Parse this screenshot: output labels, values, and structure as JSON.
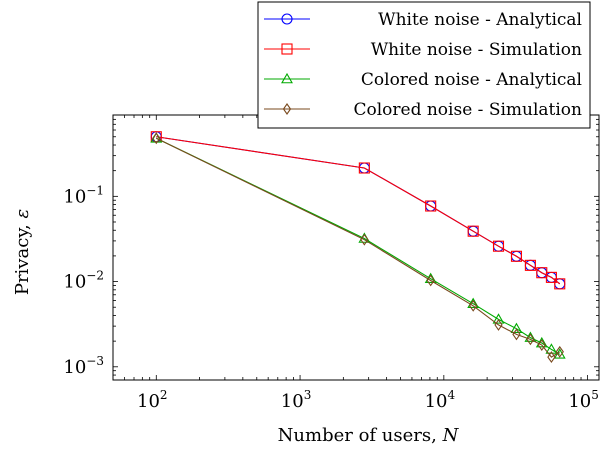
{
  "chart_data": {
    "type": "line",
    "xscale": "log",
    "yscale": "log",
    "xlim": [
      50,
      120000
    ],
    "ylim": [
      0.0007,
      0.9
    ],
    "xlabel_text": "Number of users, ",
    "xlabel_symbol": "N",
    "ylabel_text": "Privacy, ",
    "ylabel_symbol": "ε",
    "legend_position": "top-right",
    "grid": false,
    "xticks": [
      {
        "value": 100,
        "base": "10",
        "exp": "2"
      },
      {
        "value": 1000,
        "base": "10",
        "exp": "3"
      },
      {
        "value": 10000,
        "base": "10",
        "exp": "4"
      },
      {
        "value": 100000,
        "base": "10",
        "exp": "5"
      }
    ],
    "yticks": [
      {
        "value": 0.001,
        "base": "10",
        "exp": "−3"
      },
      {
        "value": 0.01,
        "base": "10",
        "exp": "−2"
      },
      {
        "value": 0.1,
        "base": "10",
        "exp": "−1"
      }
    ],
    "series": [
      {
        "name": "White noise - Analytical",
        "color": "#0000ff",
        "marker": "circle",
        "x": [
          100,
          2800,
          8100,
          16000,
          24000,
          32000,
          40000,
          48000,
          56000,
          64000
        ],
        "y": [
          0.5,
          0.215,
          0.077,
          0.039,
          0.026,
          0.0198,
          0.0155,
          0.0127,
          0.0112,
          0.0094
        ]
      },
      {
        "name": "White noise - Simulation",
        "color": "#ff0000",
        "marker": "square",
        "x": [
          100,
          2800,
          8100,
          16000,
          24000,
          32000,
          40000,
          48000,
          56000,
          64000
        ],
        "y": [
          0.5,
          0.215,
          0.077,
          0.039,
          0.026,
          0.0198,
          0.0155,
          0.0127,
          0.0112,
          0.0094
        ]
      },
      {
        "name": "Colored noise - Analytical",
        "color": "#00aa00",
        "marker": "triangle",
        "x": [
          100,
          2800,
          8100,
          16000,
          24000,
          32000,
          40000,
          48000,
          56000,
          64000
        ],
        "y": [
          0.48,
          0.032,
          0.0108,
          0.0055,
          0.0036,
          0.0028,
          0.0022,
          0.0019,
          0.0016,
          0.0014
        ]
      },
      {
        "name": "Colored noise - Simulation",
        "color": "#7a4a1e",
        "marker": "diamond",
        "x": [
          100,
          2800,
          8100,
          16000,
          24000,
          32000,
          40000,
          48000,
          56000,
          64000
        ],
        "y": [
          0.48,
          0.031,
          0.0103,
          0.0052,
          0.0031,
          0.0024,
          0.0021,
          0.0018,
          0.0013,
          0.0015
        ]
      }
    ]
  }
}
